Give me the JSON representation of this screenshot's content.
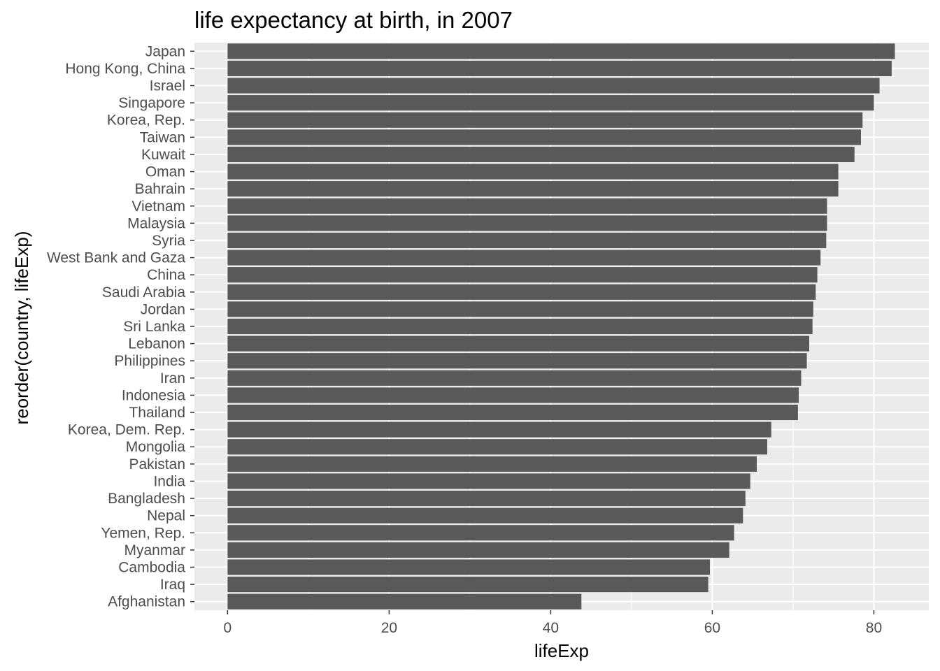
{
  "chart_data": {
    "type": "bar",
    "orientation": "horizontal",
    "title": "life expectancy at birth, in 2007",
    "xlabel": "lifeExp",
    "ylabel": "reorder(country, lifeExp)",
    "xlim": [
      -4.1,
      86.8
    ],
    "x_ticks": [
      0,
      20,
      40,
      60,
      80
    ],
    "x_tick_labels": [
      "0",
      "20",
      "40",
      "60",
      "80"
    ],
    "grid": true,
    "legend": "none",
    "categories": [
      "Japan",
      "Hong Kong, China",
      "Israel",
      "Singapore",
      "Korea, Rep.",
      "Taiwan",
      "Kuwait",
      "Oman",
      "Bahrain",
      "Vietnam",
      "Malaysia",
      "Syria",
      "West Bank and Gaza",
      "China",
      "Saudi Arabia",
      "Jordan",
      "Sri Lanka",
      "Lebanon",
      "Philippines",
      "Iran",
      "Indonesia",
      "Thailand",
      "Korea, Dem. Rep.",
      "Mongolia",
      "Pakistan",
      "India",
      "Bangladesh",
      "Nepal",
      "Yemen, Rep.",
      "Myanmar",
      "Cambodia",
      "Iraq",
      "Afghanistan"
    ],
    "values": [
      82.6,
      82.2,
      80.7,
      80.0,
      78.6,
      78.4,
      77.6,
      75.6,
      75.6,
      74.2,
      74.2,
      74.1,
      73.4,
      73.0,
      72.8,
      72.5,
      72.4,
      72.0,
      71.7,
      71.0,
      70.7,
      70.6,
      67.3,
      66.8,
      65.5,
      64.7,
      64.1,
      63.8,
      62.7,
      62.1,
      59.7,
      59.5,
      43.8
    ],
    "colors": {
      "panel_background": "#ebebeb",
      "grid_major": "#ffffff",
      "bar_fill": "#595959",
      "tick_text": "#4d4d4d",
      "tick_mark": "#333333",
      "title_text": "#000000"
    }
  }
}
